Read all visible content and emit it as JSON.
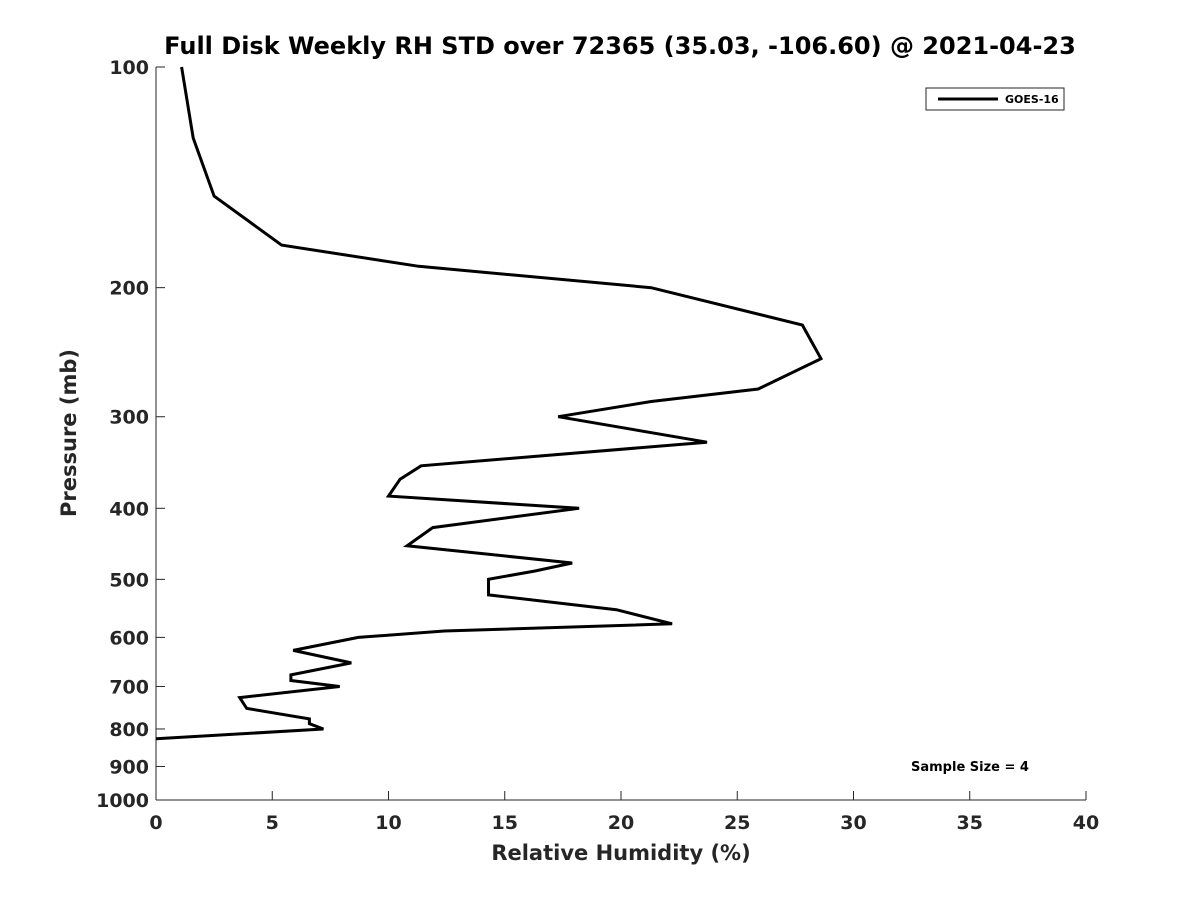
{
  "chart_data": {
    "type": "line",
    "title": "Full Disk Weekly RH STD over 72365 (35.03, -106.60) @ 2021-04-23",
    "xlabel": "Relative Humidity (%)",
    "ylabel": "Pressure (mb)",
    "xlim": [
      0,
      40
    ],
    "ylim": [
      100,
      1000
    ],
    "y_scale": "log",
    "y_reversed": true,
    "x_ticks": [
      0,
      5,
      10,
      15,
      20,
      25,
      30,
      35,
      40
    ],
    "y_ticks": [
      100,
      200,
      300,
      400,
      500,
      600,
      700,
      800,
      900,
      1000
    ],
    "grid": false,
    "legend": {
      "placement": "top-right",
      "entries": [
        "GOES-16"
      ]
    },
    "annotation": "Sample Size = 4",
    "series": [
      {
        "name": "GOES-16",
        "color": "#000000",
        "points": [
          [
            1.1,
            100
          ],
          [
            1.6,
            125
          ],
          [
            2.5,
            150
          ],
          [
            5.4,
            175
          ],
          [
            11.3,
            187
          ],
          [
            21.3,
            200
          ],
          [
            27.8,
            225
          ],
          [
            28.6,
            250
          ],
          [
            25.9,
            275
          ],
          [
            21.3,
            286
          ],
          [
            17.3,
            300
          ],
          [
            23.7,
            325
          ],
          [
            11.4,
            350
          ],
          [
            10.5,
            365
          ],
          [
            10.0,
            385
          ],
          [
            18.2,
            400
          ],
          [
            11.9,
            425
          ],
          [
            10.8,
            450
          ],
          [
            17.9,
            475
          ],
          [
            16.3,
            487
          ],
          [
            14.3,
            500
          ],
          [
            14.3,
            525
          ],
          [
            19.8,
            550
          ],
          [
            22.2,
            575
          ],
          [
            12.4,
            588
          ],
          [
            8.7,
            600
          ],
          [
            5.9,
            625
          ],
          [
            8.4,
            650
          ],
          [
            5.8,
            675
          ],
          [
            5.8,
            687
          ],
          [
            7.9,
            700
          ],
          [
            3.6,
            725
          ],
          [
            3.9,
            750
          ],
          [
            6.6,
            775
          ],
          [
            6.6,
            787
          ],
          [
            7.2,
            800
          ],
          [
            0.0,
            825
          ]
        ]
      }
    ]
  }
}
